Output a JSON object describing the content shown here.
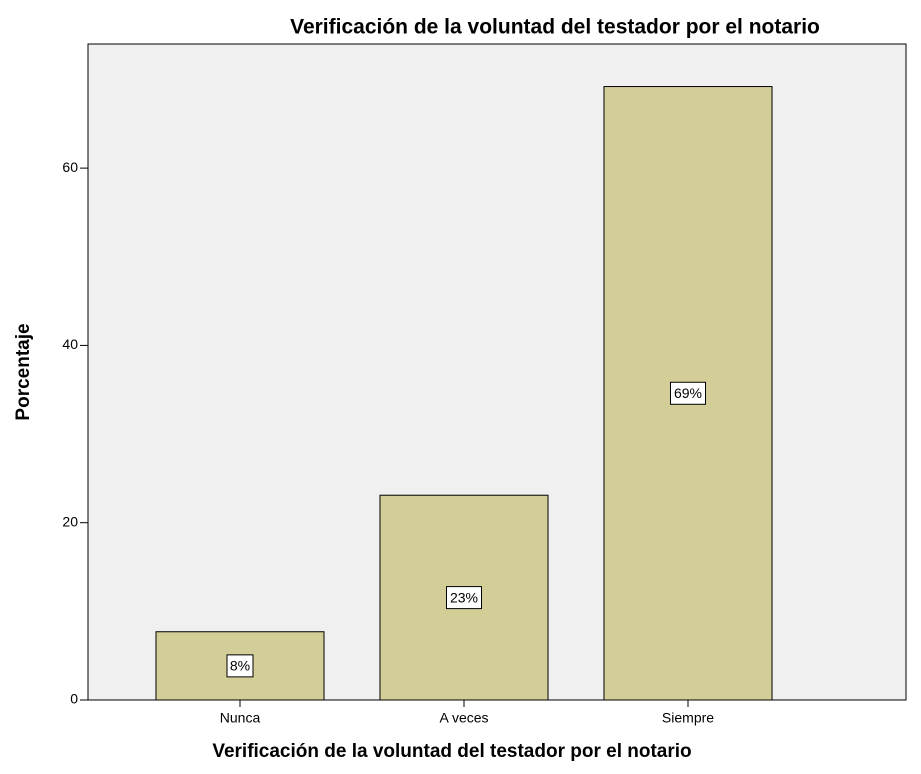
{
  "chart_data": {
    "type": "bar",
    "title": "Verificación de la voluntad del testador por el notario",
    "x_label": "Verificación de la voluntad del testador por el notario",
    "y_label": "Porcentaje",
    "categories": [
      "Nunca",
      "A veces",
      "Siempre"
    ],
    "values": [
      7.7,
      23.1,
      69.2
    ],
    "value_labels": [
      "8%",
      "23%",
      "69%"
    ],
    "color": "#d3ce97",
    "ylim": [
      0,
      74
    ],
    "yticks": [
      0,
      20,
      40,
      60
    ],
    "grid": false
  }
}
